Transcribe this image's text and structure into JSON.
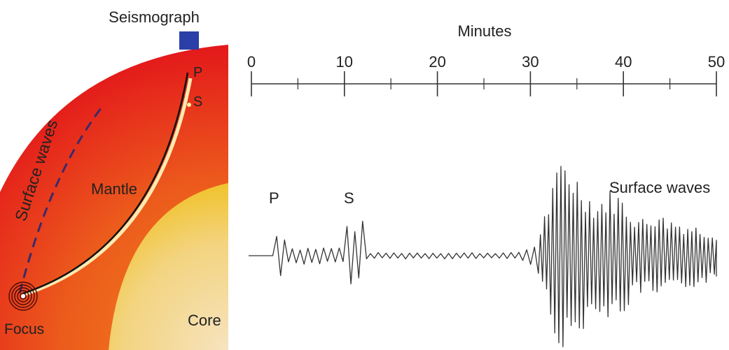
{
  "colors": {
    "mantle_outer": "#e3171b",
    "mantle_inner": "#f08a1c",
    "core_inner": "#f6e3bf",
    "core_outer": "#f0c020",
    "seismograph": "#2a3fa8",
    "ray": "#111111",
    "ray_highlight": "#fde9b0",
    "ink": "#222222"
  },
  "cross_section": {
    "seismograph_label": "Seismograph",
    "surface_waves_label": "Surface waves",
    "mantle_label": "Mantle",
    "core_label": "Core",
    "focus_label": "Focus",
    "p_label": "P",
    "s_label": "S",
    "seismograph_icon": "square-icon"
  },
  "seismogram": {
    "axis_title": "Minutes",
    "tick_labels": [
      "0",
      "10",
      "20",
      "30",
      "40",
      "50"
    ],
    "axis_range": [
      0,
      50
    ],
    "major_ticks": [
      0,
      10,
      20,
      30,
      40,
      50
    ],
    "minor_ticks": [
      5,
      15,
      25,
      35,
      45
    ],
    "p_label": "P",
    "s_label": "S",
    "surface_waves_label": "Surface waves",
    "p_arrival_min": 2.3,
    "s_arrival_min": 10.5,
    "surface_arrival_min": 30.5,
    "surface_peak_min": 33.5,
    "trace_end_min": 50
  }
}
